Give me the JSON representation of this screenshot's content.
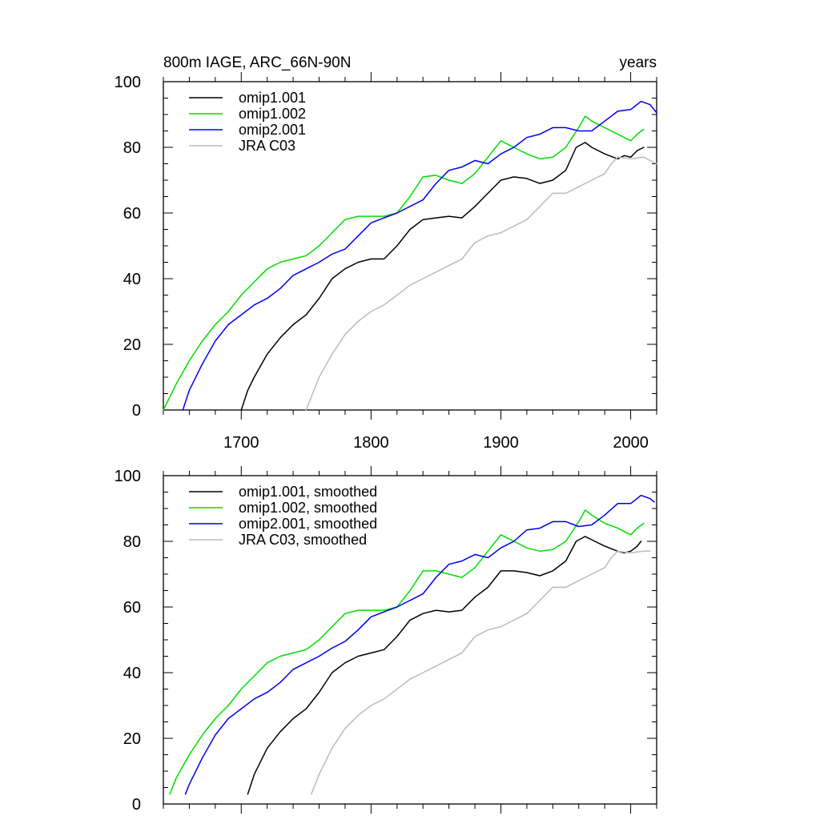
{
  "chart_data": [
    {
      "type": "line",
      "title": "800m IAGE, ARC_66N-90N",
      "units": "years",
      "xlim": [
        1640,
        2020
      ],
      "ylim": [
        0,
        100
      ],
      "x_ticks": [
        1700,
        1800,
        1900,
        2000
      ],
      "y_ticks": [
        0,
        20,
        40,
        60,
        80,
        100
      ],
      "grid": false,
      "legend_position": "top-left",
      "series": [
        {
          "name": "omip1.001",
          "color": "#000000",
          "x": [
            1700,
            1705,
            1710,
            1720,
            1730,
            1740,
            1750,
            1760,
            1770,
            1780,
            1790,
            1800,
            1810,
            1820,
            1830,
            1840,
            1850,
            1860,
            1870,
            1880,
            1890,
            1900,
            1910,
            1920,
            1930,
            1940,
            1950,
            1958,
            1965,
            1970,
            1980,
            1990,
            1995,
            2000,
            2005,
            2010
          ],
          "y": [
            0,
            6,
            10,
            17,
            22,
            26,
            29,
            34,
            40,
            43,
            45,
            46,
            46,
            50,
            55,
            58,
            58.5,
            59,
            58.5,
            62,
            66,
            70,
            71,
            70.5,
            69,
            70,
            73,
            80,
            81.5,
            80,
            78,
            76.5,
            77.5,
            77,
            79,
            80
          ]
        },
        {
          "name": "omip1.002",
          "color": "#00dd00",
          "x": [
            1640,
            1650,
            1660,
            1670,
            1680,
            1690,
            1700,
            1710,
            1720,
            1730,
            1740,
            1750,
            1760,
            1770,
            1780,
            1790,
            1800,
            1810,
            1820,
            1830,
            1840,
            1850,
            1860,
            1870,
            1880,
            1890,
            1900,
            1910,
            1920,
            1930,
            1940,
            1950,
            1960,
            1965,
            1970,
            1980,
            1990,
            2000,
            2005,
            2010
          ],
          "y": [
            0,
            8,
            15,
            21,
            26,
            30,
            35,
            39,
            43,
            45,
            46,
            47,
            50,
            54,
            58,
            59,
            59,
            59,
            60,
            65,
            71,
            71.5,
            70,
            69,
            72,
            77,
            82,
            80,
            78,
            76.5,
            77,
            80,
            86,
            89.5,
            88,
            86,
            84,
            82,
            84,
            85.5
          ]
        },
        {
          "name": "omip2.001",
          "color": "#0000ee",
          "x": [
            1655,
            1660,
            1670,
            1680,
            1690,
            1700,
            1710,
            1720,
            1730,
            1740,
            1750,
            1760,
            1770,
            1780,
            1790,
            1800,
            1810,
            1820,
            1830,
            1840,
            1850,
            1860,
            1870,
            1880,
            1890,
            1900,
            1910,
            1920,
            1930,
            1940,
            1950,
            1960,
            1970,
            1980,
            1990,
            2000,
            2008,
            2015,
            2020
          ],
          "y": [
            0,
            6,
            14,
            21,
            26,
            29,
            32,
            34,
            37,
            41,
            43,
            45,
            47.5,
            49,
            53,
            57,
            58.5,
            60,
            62,
            64,
            69,
            73,
            74,
            76,
            75,
            78,
            80,
            83,
            84,
            86,
            86,
            85,
            85,
            88,
            91,
            91.5,
            94,
            93,
            90.5
          ]
        },
        {
          "name": "JRA C03",
          "color": "#bbbbbb",
          "x": [
            1750,
            1755,
            1760,
            1770,
            1780,
            1790,
            1800,
            1810,
            1820,
            1830,
            1840,
            1850,
            1860,
            1870,
            1880,
            1890,
            1900,
            1910,
            1920,
            1930,
            1940,
            1950,
            1960,
            1970,
            1980,
            1985,
            1990,
            2000,
            2010,
            2020
          ],
          "y": [
            0,
            5,
            10,
            17,
            23,
            27,
            30,
            32,
            35,
            38,
            40,
            42,
            44,
            46,
            51,
            53,
            54,
            56,
            58,
            62,
            66,
            66,
            68,
            70,
            72,
            75,
            77,
            76.5,
            77,
            75
          ]
        }
      ]
    },
    {
      "type": "line",
      "xlim": [
        1640,
        2020
      ],
      "ylim": [
        0,
        100
      ],
      "y_ticks": [
        0,
        20,
        40,
        60,
        80,
        100
      ],
      "grid": false,
      "legend_position": "top-left",
      "series": [
        {
          "name": "omip1.001, smoothed",
          "color": "#000000",
          "x": [
            1705,
            1710,
            1720,
            1730,
            1740,
            1750,
            1760,
            1770,
            1780,
            1790,
            1800,
            1810,
            1820,
            1830,
            1840,
            1850,
            1860,
            1870,
            1880,
            1890,
            1900,
            1910,
            1920,
            1930,
            1940,
            1950,
            1958,
            1965,
            1970,
            1980,
            1990,
            1995,
            2000,
            2005,
            2008
          ],
          "y": [
            3,
            9,
            17,
            22,
            26,
            29,
            34,
            40,
            43,
            45,
            46,
            47,
            51,
            56,
            58,
            59,
            58.5,
            59,
            63,
            66,
            71,
            71,
            70.5,
            69.5,
            71,
            74,
            80,
            81.5,
            80.5,
            78.5,
            77,
            76.5,
            77,
            78.5,
            80
          ]
        },
        {
          "name": "omip1.002, smoothed",
          "color": "#00dd00",
          "x": [
            1645,
            1650,
            1660,
            1670,
            1680,
            1690,
            1700,
            1710,
            1720,
            1730,
            1740,
            1750,
            1760,
            1770,
            1780,
            1790,
            1800,
            1810,
            1820,
            1830,
            1840,
            1850,
            1860,
            1870,
            1880,
            1890,
            1900,
            1910,
            1920,
            1930,
            1940,
            1950,
            1960,
            1965,
            1970,
            1980,
            1990,
            2000,
            2005,
            2010
          ],
          "y": [
            3,
            8,
            15,
            21,
            26,
            30,
            35,
            39,
            43,
            45,
            46,
            47,
            50,
            54,
            58,
            59,
            59,
            59,
            60,
            65,
            71,
            71,
            70,
            69,
            72,
            77,
            82,
            80,
            78,
            77,
            77.5,
            80,
            86,
            89.5,
            88,
            85.5,
            84,
            82,
            84,
            85.5
          ]
        },
        {
          "name": "omip2.001, smoothed",
          "color": "#0000ee",
          "x": [
            1657,
            1660,
            1670,
            1680,
            1690,
            1700,
            1710,
            1720,
            1730,
            1740,
            1750,
            1760,
            1770,
            1780,
            1790,
            1800,
            1810,
            1820,
            1830,
            1840,
            1850,
            1860,
            1870,
            1880,
            1890,
            1900,
            1910,
            1920,
            1930,
            1940,
            1950,
            1960,
            1970,
            1980,
            1990,
            2000,
            2008,
            2015,
            2018
          ],
          "y": [
            3,
            6,
            14,
            21,
            26,
            29,
            32,
            34,
            37,
            41,
            43,
            45,
            47.5,
            49.5,
            53,
            57,
            58.5,
            60,
            62,
            64,
            69,
            73,
            74,
            76,
            75,
            78,
            80,
            83.5,
            84,
            86,
            86,
            84.5,
            85,
            88,
            91.5,
            91.5,
            94,
            93,
            92
          ]
        },
        {
          "name": "JRA C03, smoothed",
          "color": "#bbbbbb",
          "x": [
            1754,
            1760,
            1770,
            1780,
            1790,
            1800,
            1810,
            1820,
            1830,
            1840,
            1850,
            1860,
            1870,
            1880,
            1890,
            1900,
            1910,
            1920,
            1930,
            1940,
            1950,
            1960,
            1970,
            1980,
            1985,
            1990,
            2000,
            2010,
            2015
          ],
          "y": [
            3,
            9,
            17,
            23,
            27,
            30,
            32,
            35,
            38,
            40,
            42,
            44,
            46,
            51,
            53,
            54,
            56,
            58,
            62,
            66,
            66,
            68,
            70,
            72,
            75,
            77,
            76.5,
            77,
            77
          ]
        }
      ]
    }
  ]
}
